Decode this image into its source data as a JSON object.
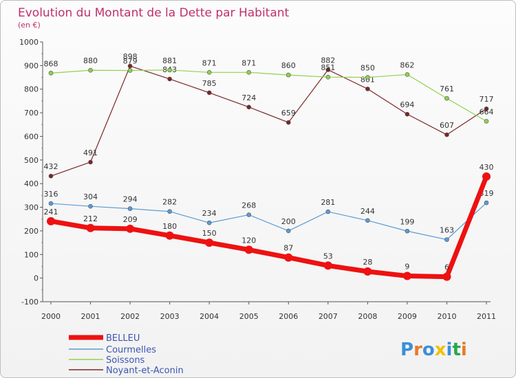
{
  "chart_data": {
    "type": "line",
    "title": "Evolution du Montant de la Dette par Habitant",
    "subtitle": "(en €)",
    "xlabel": "",
    "ylabel": "",
    "x": [
      "2000",
      "2001",
      "2002",
      "2003",
      "2004",
      "2005",
      "2006",
      "2007",
      "2008",
      "2009",
      "2010",
      "2011"
    ],
    "ylim": [
      -100,
      1000
    ],
    "yticks": [
      "-100",
      "0",
      "100",
      "200",
      "300",
      "400",
      "500",
      "600",
      "700",
      "800",
      "900",
      "1000"
    ],
    "grid": false,
    "legend_position": "bottom-left",
    "series": [
      {
        "name": "BELLEU",
        "color": "#ee1111",
        "values": [
          241,
          212,
          209,
          180,
          150,
          120,
          87,
          53,
          28,
          9,
          6,
          430
        ],
        "labels": [
          "241",
          "212",
          "209",
          "180",
          "150",
          "120",
          "87",
          "53",
          "28",
          "9",
          "6",
          "430"
        ]
      },
      {
        "name": "Courmelles",
        "color": "#5b9bd5",
        "values": [
          316,
          304,
          294,
          282,
          234,
          268,
          200,
          281,
          244,
          199,
          163,
          319
        ],
        "labels": [
          "316",
          "304",
          "294",
          "282",
          "234",
          "268",
          "200",
          "281",
          "244",
          "199",
          "163",
          "319"
        ]
      },
      {
        "name": "Soissons",
        "color": "#8fd14f",
        "values": [
          868,
          880,
          879,
          881,
          871,
          871,
          860,
          851,
          850,
          862,
          761,
          664
        ],
        "labels": [
          "868",
          "880",
          "879",
          "881",
          "871",
          "871",
          "860",
          "851",
          "850",
          "862",
          "761",
          "664"
        ]
      },
      {
        "name": "Noyant-et-Aconin",
        "color": "#7a2626",
        "values": [
          432,
          491,
          898,
          843,
          785,
          724,
          659,
          882,
          801,
          694,
          607,
          717
        ],
        "labels": [
          "432",
          "491",
          "898",
          "843",
          "785",
          "724",
          "659",
          "882",
          "801",
          "694",
          "607",
          "717"
        ]
      }
    ]
  },
  "brand": {
    "letters": [
      "P",
      "r",
      "o",
      "x",
      "i",
      "t",
      "i"
    ],
    "colors": [
      "#3c8fd8",
      "#e8792b",
      "#3c8fd8",
      "#f0c000",
      "#3c8fd8",
      "#2aa84a",
      "#e8792b"
    ]
  }
}
